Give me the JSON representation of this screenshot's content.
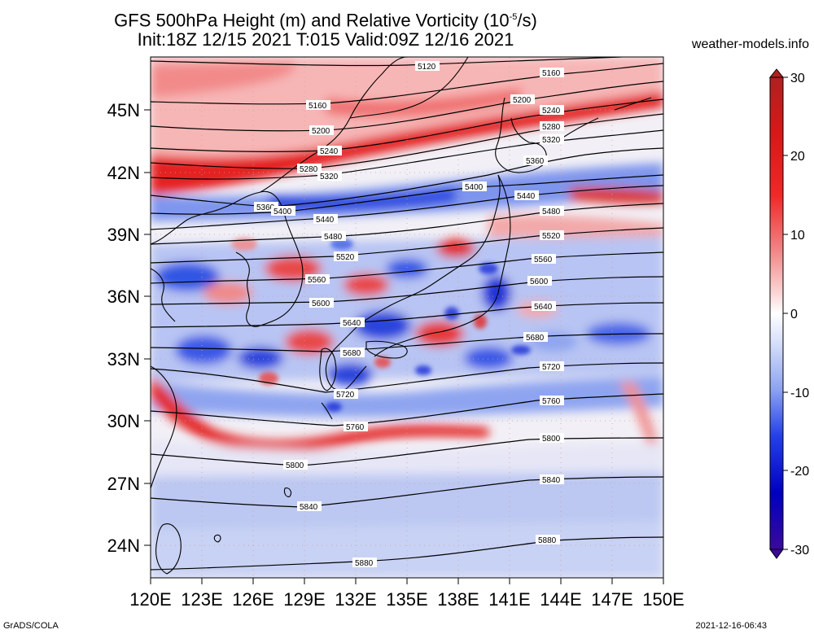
{
  "title": {
    "line1_prefix": "GFS 500hPa Height (m) and Relative Vorticity (10",
    "line1_exp": "-5",
    "line1_suffix": "/s)",
    "line2": "Init:18Z 12/15 2021 T:015 Valid:09Z 12/16 2021"
  },
  "site": "weather-models.info",
  "footer": {
    "left": "GrADS/COLA",
    "right": "2021-12-16-06:43"
  },
  "axes": {
    "lat_labels": [
      "45N",
      "42N",
      "39N",
      "36N",
      "33N",
      "30N",
      "27N",
      "24N"
    ],
    "lon_labels": [
      "120E",
      "123E",
      "126E",
      "129E",
      "132E",
      "135E",
      "138E",
      "141E",
      "144E",
      "147E",
      "150E"
    ]
  },
  "colorbar": {
    "ticks": [
      "30",
      "20",
      "10",
      "0",
      "-10",
      "-20",
      "-30"
    ],
    "colors": [
      "#3a0a9a",
      "#0000d8",
      "#3c5ef0",
      "#8ea8f2",
      "#ccd6f8",
      "#ffffff",
      "#f8c8c8",
      "#f07878",
      "#e81c1c",
      "#c81818",
      "#b02020"
    ]
  },
  "contours": [
    {
      "label": "5120"
    },
    {
      "label": "5160"
    },
    {
      "label": "5200"
    },
    {
      "label": "5240"
    },
    {
      "label": "5280"
    },
    {
      "label": "5320"
    },
    {
      "label": "5360"
    },
    {
      "label": "5400"
    },
    {
      "label": "5440"
    },
    {
      "label": "5480"
    },
    {
      "label": "5520"
    },
    {
      "label": "5560"
    },
    {
      "label": "5600"
    },
    {
      "label": "5640"
    },
    {
      "label": "5680"
    },
    {
      "label": "5720"
    },
    {
      "label": "5760"
    },
    {
      "label": "5800"
    },
    {
      "label": "5840"
    },
    {
      "label": "5880"
    }
  ]
}
